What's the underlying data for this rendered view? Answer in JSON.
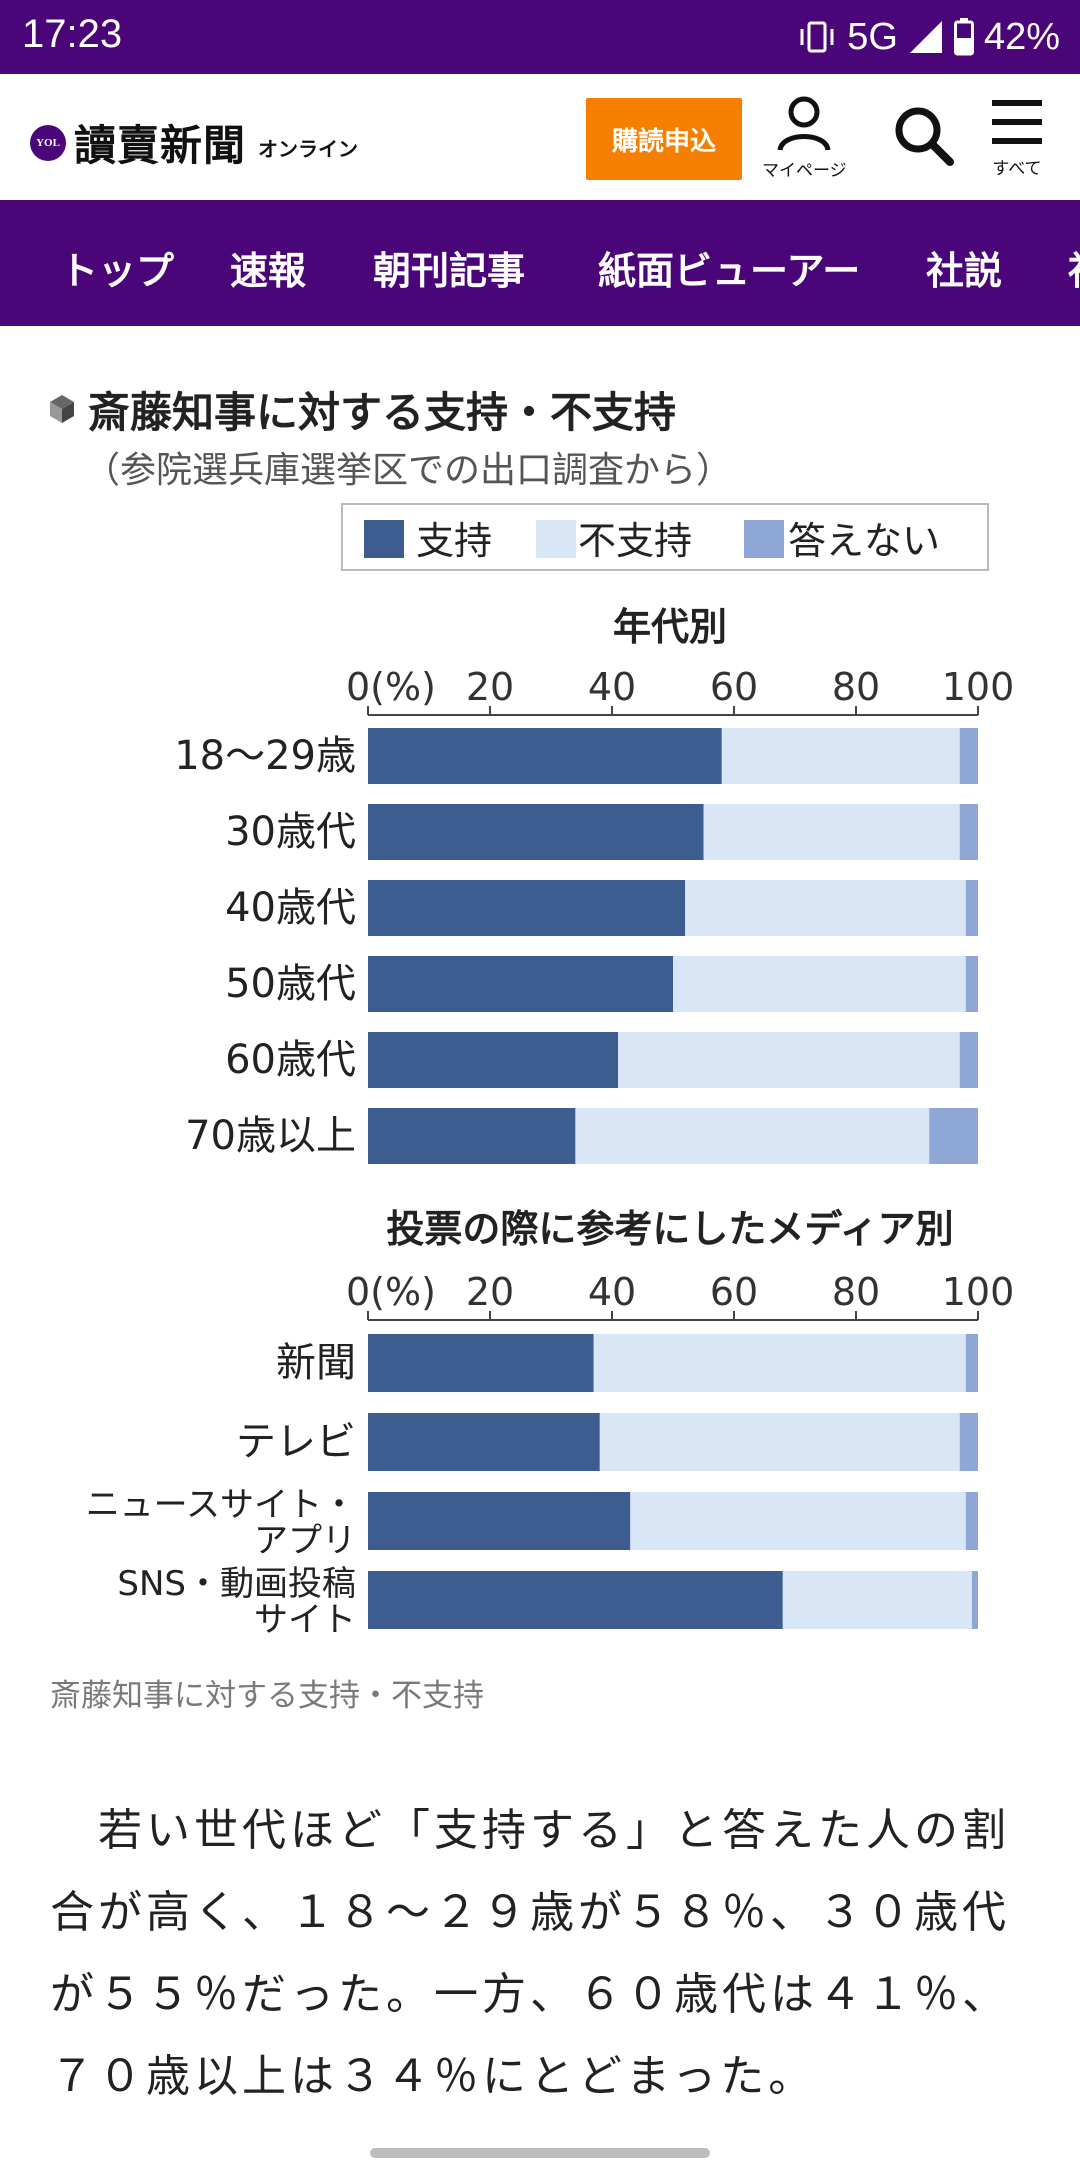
{
  "status_bar": {
    "time": "17:23",
    "network": "5G",
    "battery": "42%",
    "icons": [
      "vibrate-icon",
      "signal-icon",
      "battery-icon"
    ]
  },
  "header": {
    "logo_badge": "YOL",
    "logo_text": "讀賣新聞",
    "logo_sub": "オンライン",
    "subscribe_label": "購読申込",
    "mypage_label": "マイページ",
    "all_label": "すべて",
    "subscribe_color": "#f77f00",
    "brand_color": "#4a0578"
  },
  "nav": {
    "items": [
      "トップ",
      "速報",
      "朝刊記事",
      "紙面ビューアー",
      "社説",
      "社"
    ]
  },
  "chart_data": {
    "type": "bar",
    "stacked": true,
    "orientation": "horizontal",
    "title": "斎藤知事に対する支持・不支持",
    "subtitle": "（参院選兵庫選挙区での出口調査から）",
    "legend": [
      {
        "name": "支持",
        "color": "#3d5c8f"
      },
      {
        "name": "不支持",
        "color": "#d9e6f5"
      },
      {
        "name": "答えない",
        "color": "#8fa7d6"
      }
    ],
    "legend_placement": "top-right",
    "colors": {
      "support": "#3d5c8f",
      "oppose": "#d9e6f5",
      "no_answer": "#8fa7d6"
    },
    "panels": [
      {
        "title": "年代別",
        "ticks": [
          "0(%)",
          "20",
          "40",
          "60",
          "80",
          "100"
        ],
        "xlim": [
          0,
          100
        ],
        "categories": [
          "18〜29歳",
          "30歳代",
          "40歳代",
          "50歳代",
          "60歳代",
          "70歳以上"
        ],
        "series": [
          {
            "name": "支持",
            "values": [
              58,
              55,
              52,
              50,
              41,
              34
            ]
          },
          {
            "name": "不支持",
            "values": [
              39,
              42,
              46,
              48,
              56,
              58
            ]
          },
          {
            "name": "答えない",
            "values": [
              3,
              3,
              2,
              2,
              3,
              8
            ]
          }
        ]
      },
      {
        "title": "投票の際に参考にしたメディア別",
        "ticks": [
          "0(%)",
          "20",
          "40",
          "60",
          "80",
          "100"
        ],
        "xlim": [
          0,
          100
        ],
        "categories": [
          "新聞",
          "テレビ",
          "ニュースサイト・\nアプリ",
          "SNS・動画投稿\nサイト"
        ],
        "series": [
          {
            "name": "支持",
            "values": [
              37,
              38,
              43,
              68
            ]
          },
          {
            "name": "不支持",
            "values": [
              61,
              59,
              55,
              31
            ]
          },
          {
            "name": "答えない",
            "values": [
              2,
              3,
              2,
              1
            ]
          }
        ]
      }
    ]
  },
  "caption": "斎藤知事に対する支持・不支持",
  "article": {
    "paragraph": "　若い世代ほど「支持する」と答えた人の割合が高く、１８〜２９歳が５８％、３０歳代が５５％だった。一方、６０歳代は４１％、７０歳以上は３４％にとどまった。"
  }
}
